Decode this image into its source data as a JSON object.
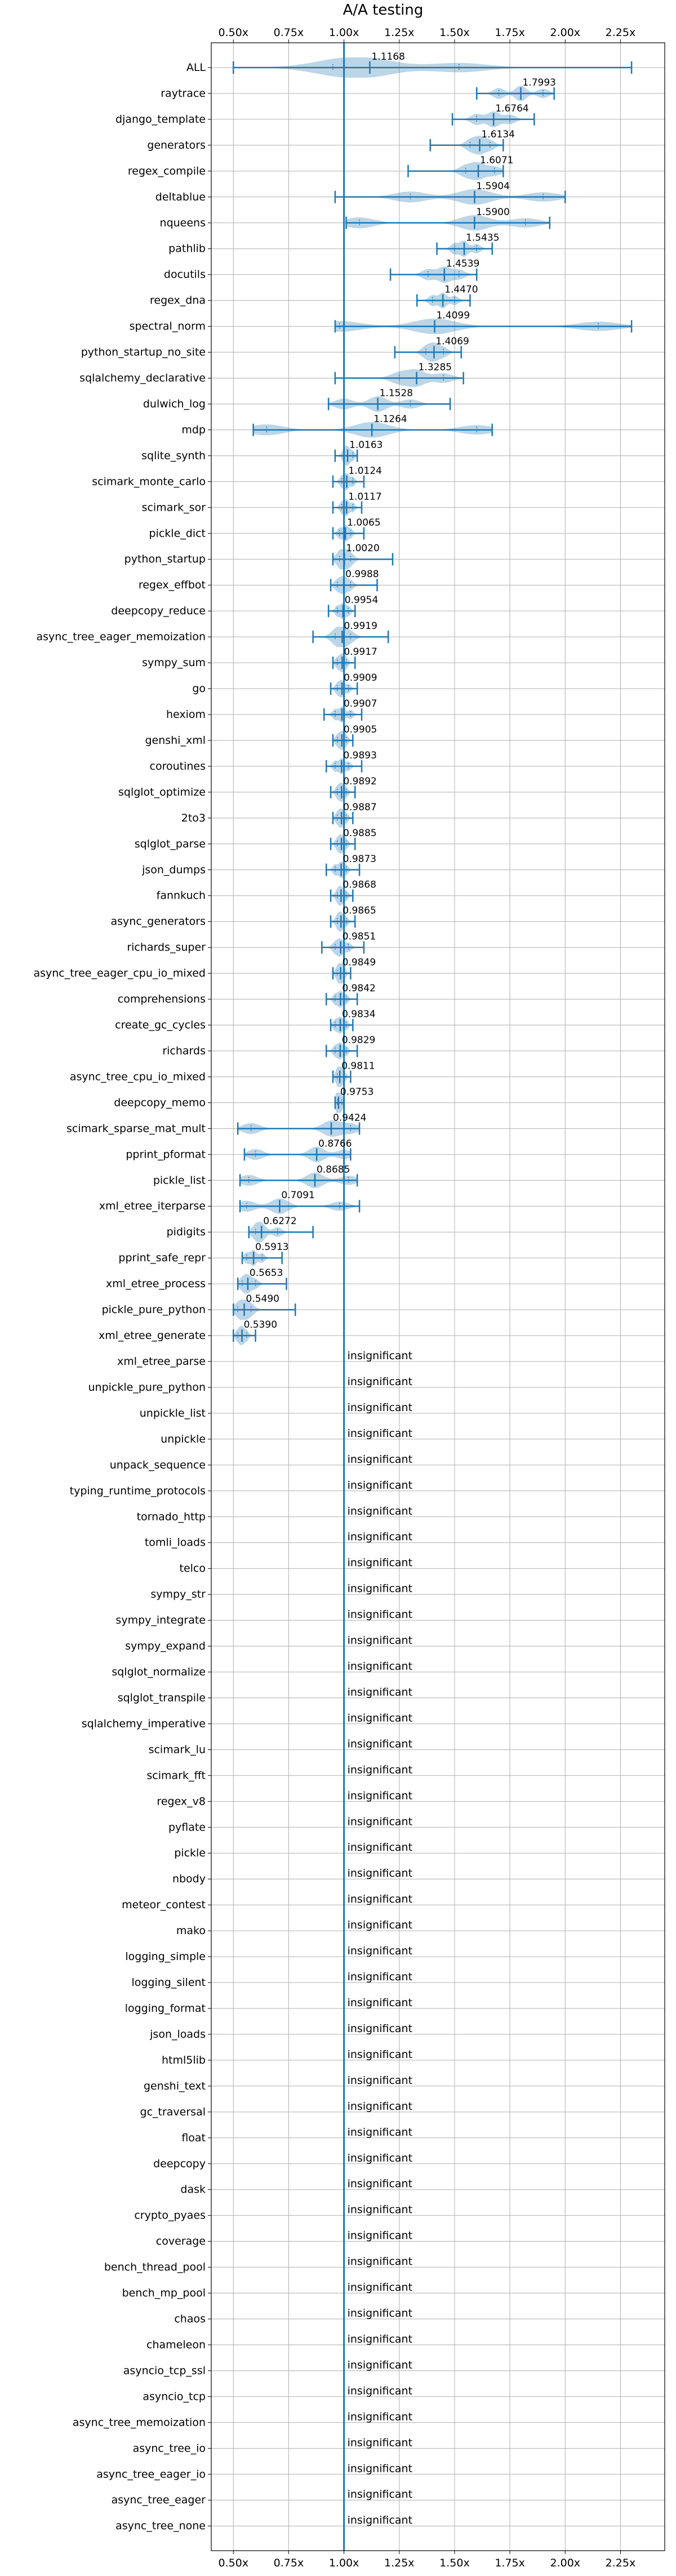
{
  "chart_data": {
    "type": "violin",
    "title": "A/A testing",
    "xlabel": "",
    "ylabel": "",
    "x_ticks": [
      "0.50x",
      "0.75x",
      "1.00x",
      "1.25x",
      "1.50x",
      "1.75x",
      "2.00x",
      "2.25x"
    ],
    "x_tick_values": [
      0.5,
      0.75,
      1.0,
      1.25,
      1.5,
      1.75,
      2.0,
      2.25
    ],
    "xlim": [
      0.4,
      2.45
    ],
    "reference_line": 1.0,
    "grid": true,
    "colors": {
      "violin": "#1f77b4",
      "violin_fill_opacity": 0.3,
      "grid": "#b0b0b0"
    },
    "benchmarks": [
      {
        "name": "ALL",
        "value": "1.1168",
        "mean": 1.1168,
        "min": 0.5,
        "max": 2.3,
        "p25": 0.95,
        "p75": 1.52
      },
      {
        "name": "raytrace",
        "value": "1.7993",
        "mean": 1.7993,
        "min": 1.6,
        "max": 1.95,
        "p25": 1.7,
        "p75": 1.9
      },
      {
        "name": "django_template",
        "value": "1.6764",
        "mean": 1.6764,
        "min": 1.49,
        "max": 1.86,
        "p25": 1.6,
        "p75": 1.75
      },
      {
        "name": "generators",
        "value": "1.6134",
        "mean": 1.6134,
        "min": 1.39,
        "max": 1.72,
        "p25": 1.57,
        "p75": 1.66
      },
      {
        "name": "regex_compile",
        "value": "1.6071",
        "mean": 1.6071,
        "min": 1.29,
        "max": 1.72,
        "p25": 1.55,
        "p75": 1.68
      },
      {
        "name": "deltablue",
        "value": "1.5904",
        "mean": 1.5904,
        "min": 0.96,
        "max": 2.0,
        "p25": 1.3,
        "p75": 1.9
      },
      {
        "name": "nqueens",
        "value": "1.5900",
        "mean": 1.59,
        "min": 1.01,
        "max": 1.93,
        "p25": 1.07,
        "p75": 1.82
      },
      {
        "name": "pathlib",
        "value": "1.5435",
        "mean": 1.5435,
        "min": 1.42,
        "max": 1.67,
        "p25": 1.5,
        "p75": 1.6
      },
      {
        "name": "docutils",
        "value": "1.4539",
        "mean": 1.4539,
        "min": 1.21,
        "max": 1.6,
        "p25": 1.38,
        "p75": 1.52
      },
      {
        "name": "regex_dna",
        "value": "1.4470",
        "mean": 1.447,
        "min": 1.33,
        "max": 1.57,
        "p25": 1.4,
        "p75": 1.5
      },
      {
        "name": "spectral_norm",
        "value": "1.4099",
        "mean": 1.4099,
        "min": 0.96,
        "max": 2.3,
        "p25": 0.98,
        "p75": 2.15
      },
      {
        "name": "python_startup_no_site",
        "value": "1.4069",
        "mean": 1.4069,
        "min": 1.23,
        "max": 1.53,
        "p25": 1.37,
        "p75": 1.45
      },
      {
        "name": "sqlalchemy_declarative",
        "value": "1.3285",
        "mean": 1.3285,
        "min": 0.96,
        "max": 1.54,
        "p25": 1.25,
        "p75": 1.45
      },
      {
        "name": "dulwich_log",
        "value": "1.1528",
        "mean": 1.1528,
        "min": 0.93,
        "max": 1.48,
        "p25": 1.0,
        "p75": 1.3
      },
      {
        "name": "mdp",
        "value": "1.1264",
        "mean": 1.1264,
        "min": 0.59,
        "max": 1.67,
        "p25": 0.65,
        "p75": 1.6
      },
      {
        "name": "sqlite_synth",
        "value": "1.0163",
        "mean": 1.0163,
        "min": 0.96,
        "max": 1.06,
        "p25": 1.0,
        "p75": 1.04
      },
      {
        "name": "scimark_monte_carlo",
        "value": "1.0124",
        "mean": 1.0124,
        "min": 0.95,
        "max": 1.09,
        "p25": 0.99,
        "p75": 1.04
      },
      {
        "name": "scimark_sor",
        "value": "1.0117",
        "mean": 1.0117,
        "min": 0.95,
        "max": 1.08,
        "p25": 0.99,
        "p75": 1.04
      },
      {
        "name": "pickle_dict",
        "value": "1.0065",
        "mean": 1.0065,
        "min": 0.95,
        "max": 1.09,
        "p25": 0.98,
        "p75": 1.03
      },
      {
        "name": "python_startup",
        "value": "1.0020",
        "mean": 1.002,
        "min": 0.95,
        "max": 1.22,
        "p25": 0.98,
        "p75": 1.03
      },
      {
        "name": "regex_effbot",
        "value": "0.9988",
        "mean": 0.9988,
        "min": 0.94,
        "max": 1.15,
        "p25": 0.97,
        "p75": 1.03
      },
      {
        "name": "deepcopy_reduce",
        "value": "0.9954",
        "mean": 0.9954,
        "min": 0.93,
        "max": 1.05,
        "p25": 0.97,
        "p75": 1.02
      },
      {
        "name": "async_tree_eager_memoization",
        "value": "0.9919",
        "mean": 0.9919,
        "min": 0.86,
        "max": 1.2,
        "p25": 0.96,
        "p75": 1.03
      },
      {
        "name": "sympy_sum",
        "value": "0.9917",
        "mean": 0.9917,
        "min": 0.95,
        "max": 1.05,
        "p25": 0.97,
        "p75": 1.01
      },
      {
        "name": "go",
        "value": "0.9909",
        "mean": 0.9909,
        "min": 0.94,
        "max": 1.06,
        "p25": 0.97,
        "p75": 1.02
      },
      {
        "name": "hexiom",
        "value": "0.9907",
        "mean": 0.9907,
        "min": 0.91,
        "max": 1.08,
        "p25": 0.96,
        "p75": 1.03
      },
      {
        "name": "genshi_xml",
        "value": "0.9905",
        "mean": 0.9905,
        "min": 0.95,
        "max": 1.04,
        "p25": 0.97,
        "p75": 1.01
      },
      {
        "name": "coroutines",
        "value": "0.9893",
        "mean": 0.9893,
        "min": 0.92,
        "max": 1.08,
        "p25": 0.96,
        "p75": 1.02
      },
      {
        "name": "sqlglot_optimize",
        "value": "0.9892",
        "mean": 0.9892,
        "min": 0.94,
        "max": 1.05,
        "p25": 0.97,
        "p75": 1.01
      },
      {
        "name": "2to3",
        "value": "0.9887",
        "mean": 0.9887,
        "min": 0.95,
        "max": 1.04,
        "p25": 0.97,
        "p75": 1.01
      },
      {
        "name": "sqlglot_parse",
        "value": "0.9885",
        "mean": 0.9885,
        "min": 0.94,
        "max": 1.05,
        "p25": 0.97,
        "p75": 1.01
      },
      {
        "name": "json_dumps",
        "value": "0.9873",
        "mean": 0.9873,
        "min": 0.92,
        "max": 1.07,
        "p25": 0.96,
        "p75": 1.01
      },
      {
        "name": "fannkuch",
        "value": "0.9868",
        "mean": 0.9868,
        "min": 0.94,
        "max": 1.04,
        "p25": 0.97,
        "p75": 1.01
      },
      {
        "name": "async_generators",
        "value": "0.9865",
        "mean": 0.9865,
        "min": 0.94,
        "max": 1.05,
        "p25": 0.97,
        "p75": 1.01
      },
      {
        "name": "richards_super",
        "value": "0.9851",
        "mean": 0.9851,
        "min": 0.9,
        "max": 1.09,
        "p25": 0.96,
        "p75": 1.02
      },
      {
        "name": "async_tree_eager_cpu_io_mixed",
        "value": "0.9849",
        "mean": 0.9849,
        "min": 0.95,
        "max": 1.03,
        "p25": 0.97,
        "p75": 1.0
      },
      {
        "name": "comprehensions",
        "value": "0.9842",
        "mean": 0.9842,
        "min": 0.92,
        "max": 1.06,
        "p25": 0.96,
        "p75": 1.01
      },
      {
        "name": "create_gc_cycles",
        "value": "0.9834",
        "mean": 0.9834,
        "min": 0.94,
        "max": 1.04,
        "p25": 0.96,
        "p75": 1.01
      },
      {
        "name": "richards",
        "value": "0.9829",
        "mean": 0.9829,
        "min": 0.92,
        "max": 1.06,
        "p25": 0.96,
        "p75": 1.01
      },
      {
        "name": "async_tree_cpu_io_mixed",
        "value": "0.9811",
        "mean": 0.9811,
        "min": 0.95,
        "max": 1.03,
        "p25": 0.97,
        "p75": 1.0
      },
      {
        "name": "deepcopy_memo",
        "value": "0.9753",
        "mean": 0.9753,
        "min": 0.96,
        "max": 1.0,
        "p25": 0.97,
        "p75": 0.99
      },
      {
        "name": "scimark_sparse_mat_mult",
        "value": "0.9424",
        "mean": 0.9424,
        "min": 0.52,
        "max": 1.07,
        "p25": 0.58,
        "p75": 1.03
      },
      {
        "name": "pprint_pformat",
        "value": "0.8766",
        "mean": 0.8766,
        "min": 0.55,
        "max": 1.03,
        "p25": 0.6,
        "p75": 1.0
      },
      {
        "name": "pickle_list",
        "value": "0.8685",
        "mean": 0.8685,
        "min": 0.53,
        "max": 1.06,
        "p25": 0.57,
        "p75": 1.02
      },
      {
        "name": "xml_etree_iterparse",
        "value": "0.7091",
        "mean": 0.7091,
        "min": 0.53,
        "max": 1.07,
        "p25": 0.56,
        "p75": 0.98
      },
      {
        "name": "pidigits",
        "value": "0.6272",
        "mean": 0.6272,
        "min": 0.57,
        "max": 0.86,
        "p25": 0.6,
        "p75": 0.7
      },
      {
        "name": "pprint_safe_repr",
        "value": "0.5913",
        "mean": 0.5913,
        "min": 0.54,
        "max": 0.72,
        "p25": 0.56,
        "p75": 0.63
      },
      {
        "name": "xml_etree_process",
        "value": "0.5653",
        "mean": 0.5653,
        "min": 0.52,
        "max": 0.74,
        "p25": 0.54,
        "p75": 0.6
      },
      {
        "name": "pickle_pure_python",
        "value": "0.5490",
        "mean": 0.549,
        "min": 0.5,
        "max": 0.78,
        "p25": 0.52,
        "p75": 0.58
      },
      {
        "name": "xml_etree_generate",
        "value": "0.5390",
        "mean": 0.539,
        "min": 0.5,
        "max": 0.6,
        "p25": 0.52,
        "p75": 0.56
      },
      {
        "name": "xml_etree_parse",
        "value": "insignificant"
      },
      {
        "name": "unpickle_pure_python",
        "value": "insignificant"
      },
      {
        "name": "unpickle_list",
        "value": "insignificant"
      },
      {
        "name": "unpickle",
        "value": "insignificant"
      },
      {
        "name": "unpack_sequence",
        "value": "insignificant"
      },
      {
        "name": "typing_runtime_protocols",
        "value": "insignificant"
      },
      {
        "name": "tornado_http",
        "value": "insignificant"
      },
      {
        "name": "tomli_loads",
        "value": "insignificant"
      },
      {
        "name": "telco",
        "value": "insignificant"
      },
      {
        "name": "sympy_str",
        "value": "insignificant"
      },
      {
        "name": "sympy_integrate",
        "value": "insignificant"
      },
      {
        "name": "sympy_expand",
        "value": "insignificant"
      },
      {
        "name": "sqlglot_normalize",
        "value": "insignificant"
      },
      {
        "name": "sqlglot_transpile",
        "value": "insignificant"
      },
      {
        "name": "sqlalchemy_imperative",
        "value": "insignificant"
      },
      {
        "name": "scimark_lu",
        "value": "insignificant"
      },
      {
        "name": "scimark_fft",
        "value": "insignificant"
      },
      {
        "name": "regex_v8",
        "value": "insignificant"
      },
      {
        "name": "pyflate",
        "value": "insignificant"
      },
      {
        "name": "pickle",
        "value": "insignificant"
      },
      {
        "name": "nbody",
        "value": "insignificant"
      },
      {
        "name": "meteor_contest",
        "value": "insignificant"
      },
      {
        "name": "mako",
        "value": "insignificant"
      },
      {
        "name": "logging_simple",
        "value": "insignificant"
      },
      {
        "name": "logging_silent",
        "value": "insignificant"
      },
      {
        "name": "logging_format",
        "value": "insignificant"
      },
      {
        "name": "json_loads",
        "value": "insignificant"
      },
      {
        "name": "html5lib",
        "value": "insignificant"
      },
      {
        "name": "genshi_text",
        "value": "insignificant"
      },
      {
        "name": "gc_traversal",
        "value": "insignificant"
      },
      {
        "name": "float",
        "value": "insignificant"
      },
      {
        "name": "deepcopy",
        "value": "insignificant"
      },
      {
        "name": "dask",
        "value": "insignificant"
      },
      {
        "name": "crypto_pyaes",
        "value": "insignificant"
      },
      {
        "name": "coverage",
        "value": "insignificant"
      },
      {
        "name": "bench_thread_pool",
        "value": "insignificant"
      },
      {
        "name": "bench_mp_pool",
        "value": "insignificant"
      },
      {
        "name": "chaos",
        "value": "insignificant"
      },
      {
        "name": "chameleon",
        "value": "insignificant"
      },
      {
        "name": "asyncio_tcp_ssl",
        "value": "insignificant"
      },
      {
        "name": "asyncio_tcp",
        "value": "insignificant"
      },
      {
        "name": "async_tree_memoization",
        "value": "insignificant"
      },
      {
        "name": "async_tree_io",
        "value": "insignificant"
      },
      {
        "name": "async_tree_eager_io",
        "value": "insignificant"
      },
      {
        "name": "async_tree_eager",
        "value": "insignificant"
      },
      {
        "name": "async_tree_none",
        "value": "insignificant"
      }
    ]
  }
}
